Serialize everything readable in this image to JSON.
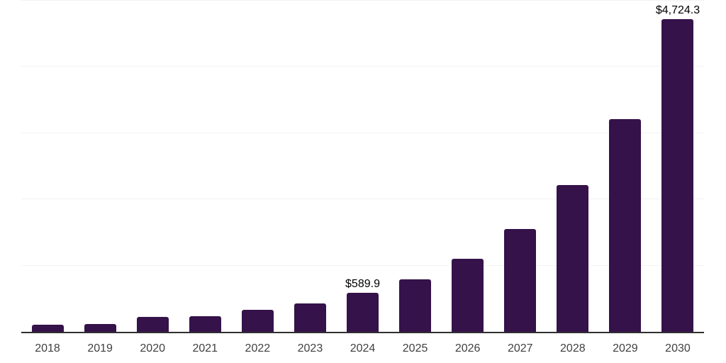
{
  "chart_data": {
    "type": "bar",
    "title": "",
    "xlabel": "",
    "ylabel": "",
    "categories": [
      "2018",
      "2019",
      "2020",
      "2021",
      "2022",
      "2023",
      "2024",
      "2025",
      "2026",
      "2027",
      "2028",
      "2029",
      "2030"
    ],
    "values": [
      105,
      115,
      225,
      240,
      330,
      430,
      589.9,
      790,
      1100,
      1550,
      2220,
      3210,
      4724.3
    ],
    "ylim": [
      0,
      5000
    ],
    "gridline_step": 1000,
    "grid": "horizontal-only",
    "legend_position": "none",
    "y_axis_tick_labels_visible": false,
    "data_labels": {
      "2024": "$589.9",
      "2030": "$4,724.3"
    },
    "colors": {
      "bar": "#35124A",
      "axis_line": "#2f2f2f",
      "gridline": "#f2f2f2",
      "tick_label": "#404040",
      "data_label": "#000000",
      "background": "#ffffff"
    }
  }
}
